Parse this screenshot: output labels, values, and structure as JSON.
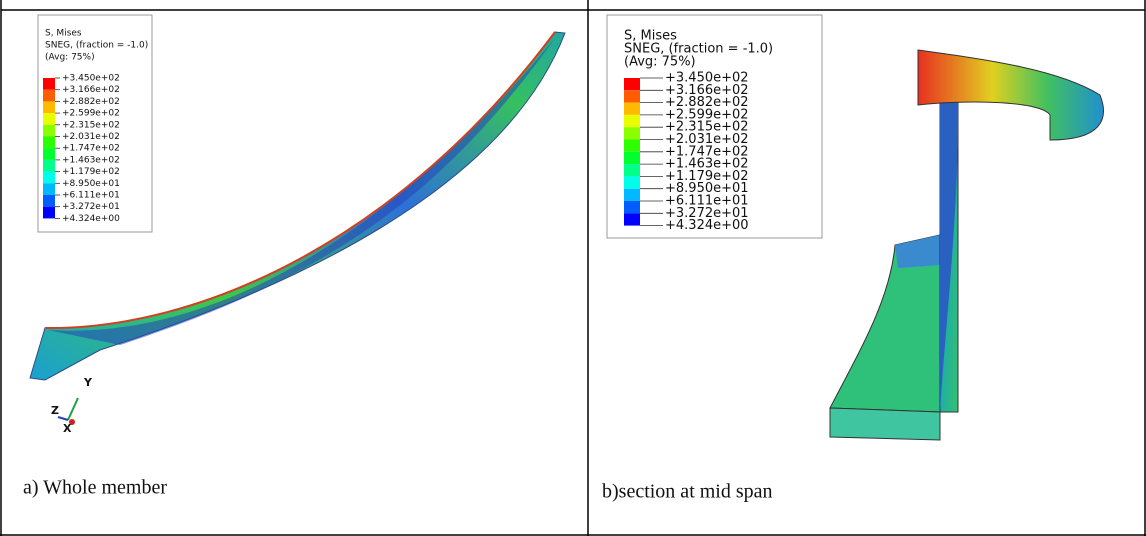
{
  "panels": [
    {
      "legend": {
        "title": "S, Mises",
        "lines": [
          "SNEG, (fraction = -1.0)",
          "(Avg: 75%)"
        ],
        "values": [
          "+3.450e+02",
          "+3.166e+02",
          "+2.882e+02",
          "+2.599e+02",
          "+2.315e+02",
          "+2.031e+02",
          "+1.747e+02",
          "+1.463e+02",
          "+1.179e+02",
          "+8.950e+01",
          "+6.111e+01",
          "+3.272e+01",
          "+4.324e+00"
        ]
      },
      "axes": [
        "Y",
        "Z",
        "X"
      ],
      "caption": "a) Whole member"
    },
    {
      "legend": {
        "title": "S, Mises",
        "lines": [
          "SNEG, (fraction = -1.0)",
          "(Avg: 75%)"
        ],
        "values": [
          "+3.450e+02",
          "+3.166e+02",
          "+2.882e+02",
          "+2.599e+02",
          "+2.315e+02",
          "+2.031e+02",
          "+1.747e+02",
          "+1.463e+02",
          "+1.179e+02",
          "+8.950e+01",
          "+6.111e+01",
          "+3.272e+01",
          "+4.324e+00"
        ]
      },
      "caption": "b)section at mid span"
    }
  ]
}
